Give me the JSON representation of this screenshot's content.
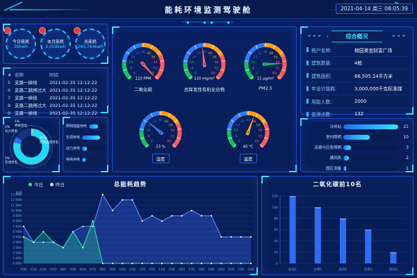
{
  "header": {
    "title": "能耗环境监测驾驶舱",
    "datetime": "2021-04-14 周三 08:05:39",
    "deco": "─◆────◆─◆────◆─"
  },
  "colors": {
    "accent_cyan": "#3fd9ff",
    "panel_border": "#1d4dc9",
    "bar_gradient_start": "#1f6df2",
    "bar_gradient_end": "#35e5ff",
    "alert_red": "#e23a3a"
  },
  "stats": {
    "items": [
      {
        "label": "今日能耗",
        "value": "39kwh"
      },
      {
        "label": "本月能耗",
        "value": "2,059kwh"
      },
      {
        "label": "总能耗",
        "value": "260,764kwh"
      }
    ]
  },
  "alarms": {
    "columns": [
      "#",
      "名称",
      "时间"
    ],
    "rows": [
      [
        "5",
        "支路一掉线",
        "2021-02-35 12:12:22"
      ],
      [
        "6",
        "支路二跳闸过大",
        "2021-02-35 12:12:22"
      ],
      [
        "7",
        "支路一掉线",
        "2021-02-35 12:12:22"
      ],
      [
        "8",
        "支路二跳闸过大",
        "2021-02-35 12:12:22"
      ],
      [
        "9",
        "支路一掉线",
        "2021-02-35 12:12:22"
      ]
    ]
  },
  "energy_breakdown": {
    "slices": [
      {
        "label": "照明插座用电",
        "pct": 77,
        "color": "#25d9f2"
      },
      {
        "label": "空调用电",
        "pct": 5,
        "color": "#2b6cf0"
      },
      {
        "label": "动力用电",
        "pct": 1,
        "color": "#ffd23e"
      },
      {
        "label": "特殊用电",
        "pct": 1,
        "color": "#25d97a"
      }
    ]
  },
  "type_bars": {
    "rows": [
      {
        "label": "照明插座用电",
        "pct": 58
      },
      {
        "label": "空调用电",
        "pct": 80
      },
      {
        "label": "动力用电",
        "pct": 20
      },
      {
        "label": "特殊用电",
        "pct": 16
      }
    ]
  },
  "gauges": {
    "scale": {
      "min": 0,
      "max": 80,
      "tick": 8,
      "segments": [
        {
          "from": 0,
          "to": 16,
          "color": "#17c05f"
        },
        {
          "from": 16,
          "to": 40,
          "color": "#2f7df6"
        },
        {
          "from": 40,
          "to": 60,
          "color": "#ff9d1c"
        },
        {
          "from": 60,
          "to": 80,
          "color": "#ff5c5c"
        }
      ]
    },
    "items": [
      {
        "label": "二氧化碳",
        "value_text": "123 PPM",
        "needle_deg": 138,
        "needle_color": "#ff6b6b",
        "boxed": false
      },
      {
        "label": "总挥发性有机化合物",
        "value_text": "110 mg/m³",
        "needle_deg": -7,
        "needle_color": "#ff6b6b",
        "boxed": false
      },
      {
        "label": "PM2.5",
        "value_text": "11 μg/m³",
        "needle_deg": 88,
        "needle_color": "#22c55e",
        "boxed": false
      },
      {
        "label": "湿度",
        "value_text": "23 %",
        "needle_deg": -50,
        "needle_color": "#3b82f6",
        "boxed": true
      },
      {
        "label": "温度",
        "value_text": "45 ℃",
        "needle_deg": 20,
        "needle_color": "#ffb020",
        "boxed": true
      }
    ]
  },
  "overview": {
    "title": "综合概况",
    "side_deco": "▰ ▰ ▰",
    "rows": [
      {
        "label": "租户名称:",
        "value": "榕园美宜财富广场"
      },
      {
        "label": "建筑数量:",
        "value": "4栋"
      },
      {
        "label": "建筑面积:",
        "value": "66,505.14平方米"
      },
      {
        "label": "年设计能耗:",
        "value": "3,000,000千克标准煤"
      },
      {
        "label": "用能人数:",
        "value": "2000"
      },
      {
        "label": "监测点数:",
        "value": "132"
      }
    ]
  },
  "rank_bars": {
    "rows": [
      {
        "label": "冷热站",
        "value": 21
      },
      {
        "label": "室内照明",
        "value": 10
      },
      {
        "label": "走廊与应急照明",
        "value": 3
      },
      {
        "label": "通风机",
        "value": 2
      },
      {
        "label": "园区设备",
        "value": 1
      }
    ]
  },
  "chart_data": [
    {
      "type": "line",
      "title": "总能耗趋势",
      "ylabel": "能耗",
      "unit": "KWh",
      "ylim": [
        0,
        13
      ],
      "x": [
        "00时",
        "01时",
        "02时",
        "03时",
        "04时",
        "05时",
        "06时",
        "07时",
        "08时",
        "09时",
        "10时",
        "11时",
        "12时",
        "13时",
        "14时",
        "15时",
        "16时",
        "17时",
        "18时",
        "19时",
        "20时",
        "21时",
        "22时",
        "23时"
      ],
      "series": [
        {
          "name": "昨日",
          "color": "#5a8cff",
          "fill": "rgba(59,101,235,0.35)",
          "dot": "#ffffff",
          "values": [
            7,
            4,
            4,
            4,
            3,
            6,
            7,
            7,
            13,
            10,
            12,
            12,
            8,
            9,
            8,
            9,
            9,
            10,
            9,
            9,
            5,
            5,
            5,
            5
          ]
        },
        {
          "name": "今日",
          "color": "#2fe39a",
          "fill": "rgba(47,227,154,0.28)",
          "dot": "#d8ffe8",
          "values": [
            5,
            4,
            6,
            4,
            3,
            6,
            3,
            8,
            0,
            0,
            0,
            0,
            0,
            0,
            0,
            0,
            0,
            0,
            0,
            0,
            0,
            0,
            0,
            0
          ]
        }
      ],
      "legend": [
        "今日",
        "昨日"
      ],
      "legend_colors": [
        "#2fe39a",
        "#cfe0ff"
      ]
    },
    {
      "type": "bar",
      "title": "二氧化碳前10名",
      "categories": [
        "房间1",
        "仓库1",
        "房间2",
        "仓库2",
        "房间3"
      ],
      "values": [
        120,
        100,
        80,
        60,
        20
      ],
      "ylim": [
        0,
        120
      ],
      "ytick": 20,
      "bar_color": "#2e6cf0",
      "bar_cap_color": "#6f9bff"
    }
  ]
}
